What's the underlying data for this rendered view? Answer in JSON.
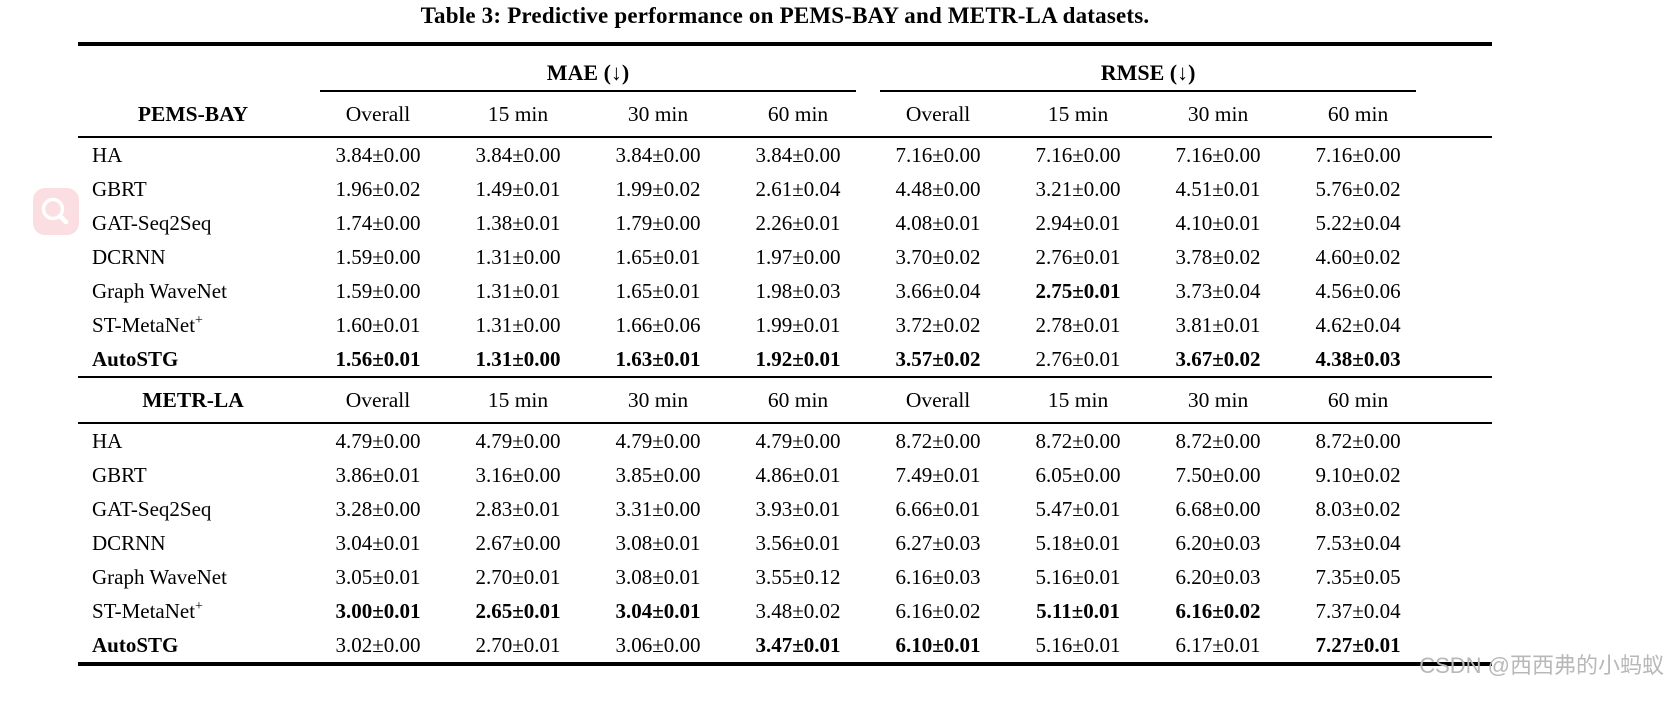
{
  "page": {
    "title": "Table 3: Predictive performance on PEMS-BAY and METR-LA datasets.",
    "watermark": "CSDN @西西弗的小蚂蚁"
  },
  "colors": {
    "fab_pink": "#fbdee1",
    "rule_black": "#000000",
    "watermark_gray": "#b8b8b8"
  },
  "icons": {
    "fab": "magnifier-icon"
  },
  "table": {
    "metric_groups": [
      {
        "label": "MAE (↓)"
      },
      {
        "label": "RMSE (↓)"
      }
    ],
    "sub_headers": [
      "Overall",
      "15 min",
      "30 min",
      "60 min"
    ],
    "sections": [
      {
        "dataset": "PEMS-BAY",
        "rows": [
          {
            "model": "HA",
            "model_sup": "",
            "bold_model": false,
            "cells": [
              {
                "v": "3.84±0.00",
                "b": false
              },
              {
                "v": "3.84±0.00",
                "b": false
              },
              {
                "v": "3.84±0.00",
                "b": false
              },
              {
                "v": "3.84±0.00",
                "b": false
              },
              {
                "v": "7.16±0.00",
                "b": false
              },
              {
                "v": "7.16±0.00",
                "b": false
              },
              {
                "v": "7.16±0.00",
                "b": false
              },
              {
                "v": "7.16±0.00",
                "b": false
              }
            ]
          },
          {
            "model": "GBRT",
            "model_sup": "",
            "bold_model": false,
            "cells": [
              {
                "v": "1.96±0.02",
                "b": false
              },
              {
                "v": "1.49±0.01",
                "b": false
              },
              {
                "v": "1.99±0.02",
                "b": false
              },
              {
                "v": "2.61±0.04",
                "b": false
              },
              {
                "v": "4.48±0.00",
                "b": false
              },
              {
                "v": "3.21±0.00",
                "b": false
              },
              {
                "v": "4.51±0.01",
                "b": false
              },
              {
                "v": "5.76±0.02",
                "b": false
              }
            ]
          },
          {
            "model": "GAT-Seq2Seq",
            "model_sup": "",
            "bold_model": false,
            "cells": [
              {
                "v": "1.74±0.00",
                "b": false
              },
              {
                "v": "1.38±0.01",
                "b": false
              },
              {
                "v": "1.79±0.00",
                "b": false
              },
              {
                "v": "2.26±0.01",
                "b": false
              },
              {
                "v": "4.08±0.01",
                "b": false
              },
              {
                "v": "2.94±0.01",
                "b": false
              },
              {
                "v": "4.10±0.01",
                "b": false
              },
              {
                "v": "5.22±0.04",
                "b": false
              }
            ]
          },
          {
            "model": "DCRNN",
            "model_sup": "",
            "bold_model": false,
            "cells": [
              {
                "v": "1.59±0.00",
                "b": false
              },
              {
                "v": "1.31±0.00",
                "b": false
              },
              {
                "v": "1.65±0.01",
                "b": false
              },
              {
                "v": "1.97±0.00",
                "b": false
              },
              {
                "v": "3.70±0.02",
                "b": false
              },
              {
                "v": "2.76±0.01",
                "b": false
              },
              {
                "v": "3.78±0.02",
                "b": false
              },
              {
                "v": "4.60±0.02",
                "b": false
              }
            ]
          },
          {
            "model": "Graph WaveNet",
            "model_sup": "",
            "bold_model": false,
            "cells": [
              {
                "v": "1.59±0.00",
                "b": false
              },
              {
                "v": "1.31±0.01",
                "b": false
              },
              {
                "v": "1.65±0.01",
                "b": false
              },
              {
                "v": "1.98±0.03",
                "b": false
              },
              {
                "v": "3.66±0.04",
                "b": false
              },
              {
                "v": "2.75±0.01",
                "b": true
              },
              {
                "v": "3.73±0.04",
                "b": false
              },
              {
                "v": "4.56±0.06",
                "b": false
              }
            ]
          },
          {
            "model": "ST-MetaNet",
            "model_sup": "+",
            "bold_model": false,
            "cells": [
              {
                "v": "1.60±0.01",
                "b": false
              },
              {
                "v": "1.31±0.00",
                "b": false
              },
              {
                "v": "1.66±0.06",
                "b": false
              },
              {
                "v": "1.99±0.01",
                "b": false
              },
              {
                "v": "3.72±0.02",
                "b": false
              },
              {
                "v": "2.78±0.01",
                "b": false
              },
              {
                "v": "3.81±0.01",
                "b": false
              },
              {
                "v": "4.62±0.04",
                "b": false
              }
            ]
          },
          {
            "model": "AutoSTG",
            "model_sup": "",
            "bold_model": true,
            "cells": [
              {
                "v": "1.56±0.01",
                "b": true
              },
              {
                "v": "1.31±0.00",
                "b": true
              },
              {
                "v": "1.63±0.01",
                "b": true
              },
              {
                "v": "1.92±0.01",
                "b": true
              },
              {
                "v": "3.57±0.02",
                "b": true
              },
              {
                "v": "2.76±0.01",
                "b": false
              },
              {
                "v": "3.67±0.02",
                "b": true
              },
              {
                "v": "4.38±0.03",
                "b": true
              }
            ]
          }
        ]
      },
      {
        "dataset": "METR-LA",
        "rows": [
          {
            "model": "HA",
            "model_sup": "",
            "bold_model": false,
            "cells": [
              {
                "v": "4.79±0.00",
                "b": false
              },
              {
                "v": "4.79±0.00",
                "b": false
              },
              {
                "v": "4.79±0.00",
                "b": false
              },
              {
                "v": "4.79±0.00",
                "b": false
              },
              {
                "v": "8.72±0.00",
                "b": false
              },
              {
                "v": "8.72±0.00",
                "b": false
              },
              {
                "v": "8.72±0.00",
                "b": false
              },
              {
                "v": "8.72±0.00",
                "b": false
              }
            ]
          },
          {
            "model": "GBRT",
            "model_sup": "",
            "bold_model": false,
            "cells": [
              {
                "v": "3.86±0.01",
                "b": false
              },
              {
                "v": "3.16±0.00",
                "b": false
              },
              {
                "v": "3.85±0.00",
                "b": false
              },
              {
                "v": "4.86±0.01",
                "b": false
              },
              {
                "v": "7.49±0.01",
                "b": false
              },
              {
                "v": "6.05±0.00",
                "b": false
              },
              {
                "v": "7.50±0.00",
                "b": false
              },
              {
                "v": "9.10±0.02",
                "b": false
              }
            ]
          },
          {
            "model": "GAT-Seq2Seq",
            "model_sup": "",
            "bold_model": false,
            "cells": [
              {
                "v": "3.28±0.00",
                "b": false
              },
              {
                "v": "2.83±0.01",
                "b": false
              },
              {
                "v": "3.31±0.00",
                "b": false
              },
              {
                "v": "3.93±0.01",
                "b": false
              },
              {
                "v": "6.66±0.01",
                "b": false
              },
              {
                "v": "5.47±0.01",
                "b": false
              },
              {
                "v": "6.68±0.00",
                "b": false
              },
              {
                "v": "8.03±0.02",
                "b": false
              }
            ]
          },
          {
            "model": "DCRNN",
            "model_sup": "",
            "bold_model": false,
            "cells": [
              {
                "v": "3.04±0.01",
                "b": false
              },
              {
                "v": "2.67±0.00",
                "b": false
              },
              {
                "v": "3.08±0.01",
                "b": false
              },
              {
                "v": "3.56±0.01",
                "b": false
              },
              {
                "v": "6.27±0.03",
                "b": false
              },
              {
                "v": "5.18±0.01",
                "b": false
              },
              {
                "v": "6.20±0.03",
                "b": false
              },
              {
                "v": "7.53±0.04",
                "b": false
              }
            ]
          },
          {
            "model": "Graph WaveNet",
            "model_sup": "",
            "bold_model": false,
            "cells": [
              {
                "v": "3.05±0.01",
                "b": false
              },
              {
                "v": "2.70±0.01",
                "b": false
              },
              {
                "v": "3.08±0.01",
                "b": false
              },
              {
                "v": "3.55±0.12",
                "b": false
              },
              {
                "v": "6.16±0.03",
                "b": false
              },
              {
                "v": "5.16±0.01",
                "b": false
              },
              {
                "v": "6.20±0.03",
                "b": false
              },
              {
                "v": "7.35±0.05",
                "b": false
              }
            ]
          },
          {
            "model": "ST-MetaNet",
            "model_sup": "+",
            "bold_model": false,
            "cells": [
              {
                "v": "3.00±0.01",
                "b": true
              },
              {
                "v": "2.65±0.01",
                "b": true
              },
              {
                "v": "3.04±0.01",
                "b": true
              },
              {
                "v": "3.48±0.02",
                "b": false
              },
              {
                "v": "6.16±0.02",
                "b": false
              },
              {
                "v": "5.11±0.01",
                "b": true
              },
              {
                "v": "6.16±0.02",
                "b": true
              },
              {
                "v": "7.37±0.04",
                "b": false
              }
            ]
          },
          {
            "model": "AutoSTG",
            "model_sup": "",
            "bold_model": true,
            "cells": [
              {
                "v": "3.02±0.00",
                "b": false
              },
              {
                "v": "2.70±0.01",
                "b": false
              },
              {
                "v": "3.06±0.00",
                "b": false
              },
              {
                "v": "3.47±0.01",
                "b": true
              },
              {
                "v": "6.10±0.01",
                "b": true
              },
              {
                "v": "5.16±0.01",
                "b": false
              },
              {
                "v": "6.17±0.01",
                "b": false
              },
              {
                "v": "7.27±0.01",
                "b": true
              }
            ]
          }
        ]
      }
    ]
  }
}
